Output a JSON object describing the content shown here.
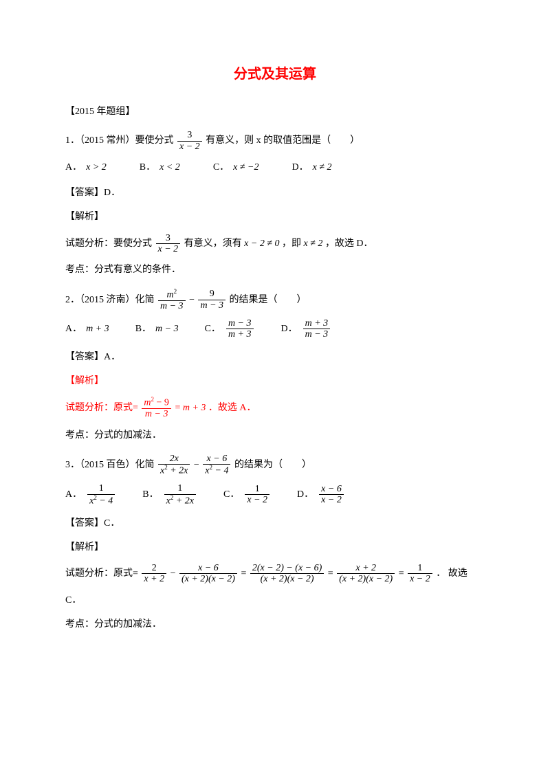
{
  "title": "分式及其运算",
  "group_header": "【2015 年题组】",
  "q1": {
    "stem_pre": "1．（2015 常州）要使分式",
    "frac_num": "3",
    "frac_den": "x − 2",
    "stem_post": "有意义，则 x 的取值范围是（　　）",
    "opts": {
      "A": "x > 2",
      "B": "x < 2",
      "C": "x ≠ −2",
      "D": "x ≠ 2"
    },
    "answer": "【答案】D．",
    "analysis_label": "【解析】",
    "analysis_pre": "试题分析：要使分式",
    "analysis_mid1": "有意义，须有",
    "cond1": "x − 2 ≠ 0",
    "analysis_mid2": "，即",
    "cond2": "x ≠ 2",
    "analysis_post": "，故选 D．",
    "kaodian": "考点：分式有意义的条件．"
  },
  "q2": {
    "stem_pre": "2．（2015 济南）化简",
    "f1n": "m",
    "f1d": "m − 3",
    "f2n": "9",
    "f2d": "m − 3",
    "stem_post": "的结果是（　　）",
    "opts": {
      "A": "m + 3",
      "B": "m − 3",
      "C_n": "m − 3",
      "C_d": "m + 3",
      "D_n": "m + 3",
      "D_d": "m − 3"
    },
    "answer": "【答案】A．",
    "analysis_label": "【解析】",
    "analysis_pre": "试题分析：原式=",
    "rn": "m",
    "rd": "m − 3",
    "analysis_mid": "=",
    "result": "m + 3",
    "analysis_post": "．故选 A．",
    "kaodian": "考点：分式的加减法．"
  },
  "q3": {
    "stem_pre": "3．（2015 百色）化简",
    "f1n": "2x",
    "f1d": "x² + 2x",
    "f2n": "x − 6",
    "f2d": "x² − 4",
    "stem_post": "的结果为（　　）",
    "opts": {
      "A_n": "1",
      "A_d": "x² − 4",
      "B_n": "1",
      "B_d": "x² + 2x",
      "C_n": "1",
      "C_d": "x − 2",
      "D_n": "x − 6",
      "D_d": "x − 2"
    },
    "answer": "【答案】C．",
    "analysis_label": "【解析】",
    "analysis_pre": "试题分析：原式=",
    "s1an": "2",
    "s1ad": "x + 2",
    "s1bn": "x − 6",
    "s1bd": "(x + 2)(x − 2)",
    "s2n": "2(x − 2) − (x − 6)",
    "s2d": "(x + 2)(x − 2)",
    "s3n": "x + 2",
    "s3d": "(x + 2)(x − 2)",
    "s4n": "1",
    "s4d": "x − 2",
    "analysis_post": "． 故选",
    "final": "C．",
    "kaodian": "考点：分式的加减法．"
  },
  "dot": "．",
  "eq": "=",
  "minus": "−"
}
